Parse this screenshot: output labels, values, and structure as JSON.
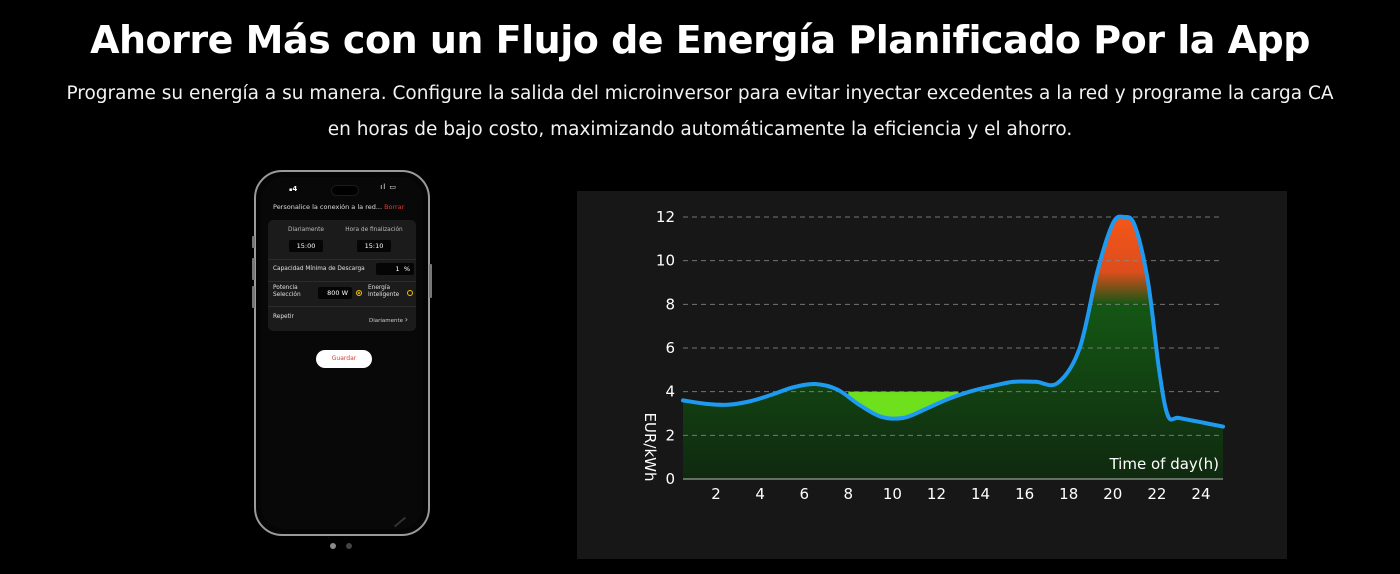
{
  "header": {
    "title": "Ahorre Más con un Flujo de Energía Planificado Por la App",
    "subtitle_line1": "Programe su energía a su manera. Configure la salida del microinversor para evitar inyectar excedentes a la red y programe la carga CA",
    "subtitle_line2": "en horas de bajo costo, maximizando automáticamente la eficiencia y el ahorro."
  },
  "phone": {
    "status_left": "4",
    "status_right": "ıl ▭",
    "screen_title": "Personalice la conexión a la red...",
    "delete_label": "Borrar",
    "daily_label": "Diariamente",
    "end_time_label": "Hora de finalización",
    "start_time": "15:00",
    "end_time": "15:10",
    "min_discharge_label": "Capacidad Mínima de Descarga",
    "min_discharge_value": "1",
    "min_discharge_unit": "%",
    "power_label_1": "Potencia",
    "power_label_2": "Selección",
    "power_value": "800 W",
    "smart_label_1": "Energía",
    "smart_label_2": "Inteligente",
    "repeat_label": "Repetir",
    "repeat_value": "Diariamente",
    "repeat_chevron": "›",
    "save_label": "Guardar",
    "power_selected": true
  },
  "carousel": {
    "count": 2,
    "active": 0,
    "active_color": "#8a8a8a",
    "inactive_color": "#444444"
  },
  "colors": {
    "accent_red": "#e03b2f",
    "accent_yellow": "#f2c200",
    "line_blue": "#1e9bf0",
    "low_fill_green": "#6ee01c",
    "peak_fill_orange": "#ff5a1a"
  },
  "chart_data": {
    "type": "line",
    "title": "",
    "xlabel": "Time of day(h)",
    "ylabel": "EUR/kWh",
    "xlim": [
      0.5,
      25
    ],
    "ylim": [
      0,
      12
    ],
    "xticks": [
      2,
      4,
      6,
      8,
      10,
      12,
      14,
      16,
      18,
      20,
      22,
      24
    ],
    "yticks": [
      0,
      2,
      4,
      6,
      8,
      10,
      12
    ],
    "grid": "horizontal dashed",
    "series": [
      {
        "x": [
          0.5,
          1.5,
          2.5,
          3.5,
          4.5,
          5.5,
          6.5,
          7.5,
          8.5,
          9.5,
          10.5,
          11.5,
          12.5,
          13.5,
          14.5,
          15.5,
          16.5,
          17.5,
          18.5,
          19.3,
          20.0,
          20.5,
          21.0,
          21.6,
          22.1,
          22.5,
          23.0,
          24.0,
          25.0
        ],
        "y": [
          3.6,
          3.45,
          3.4,
          3.55,
          3.85,
          4.2,
          4.35,
          4.1,
          3.4,
          2.85,
          2.8,
          3.2,
          3.65,
          4.0,
          4.25,
          4.45,
          4.45,
          4.4,
          6.0,
          9.5,
          11.7,
          12.0,
          11.6,
          9.0,
          5.0,
          2.9,
          2.8,
          2.6,
          2.4
        ]
      }
    ],
    "annotations": [
      {
        "type": "low_price_fill",
        "threshold": 4,
        "x_range": [
          8,
          13
        ]
      },
      {
        "type": "peak_fill",
        "threshold": 8,
        "x_range": [
          19,
          22
        ]
      }
    ]
  }
}
